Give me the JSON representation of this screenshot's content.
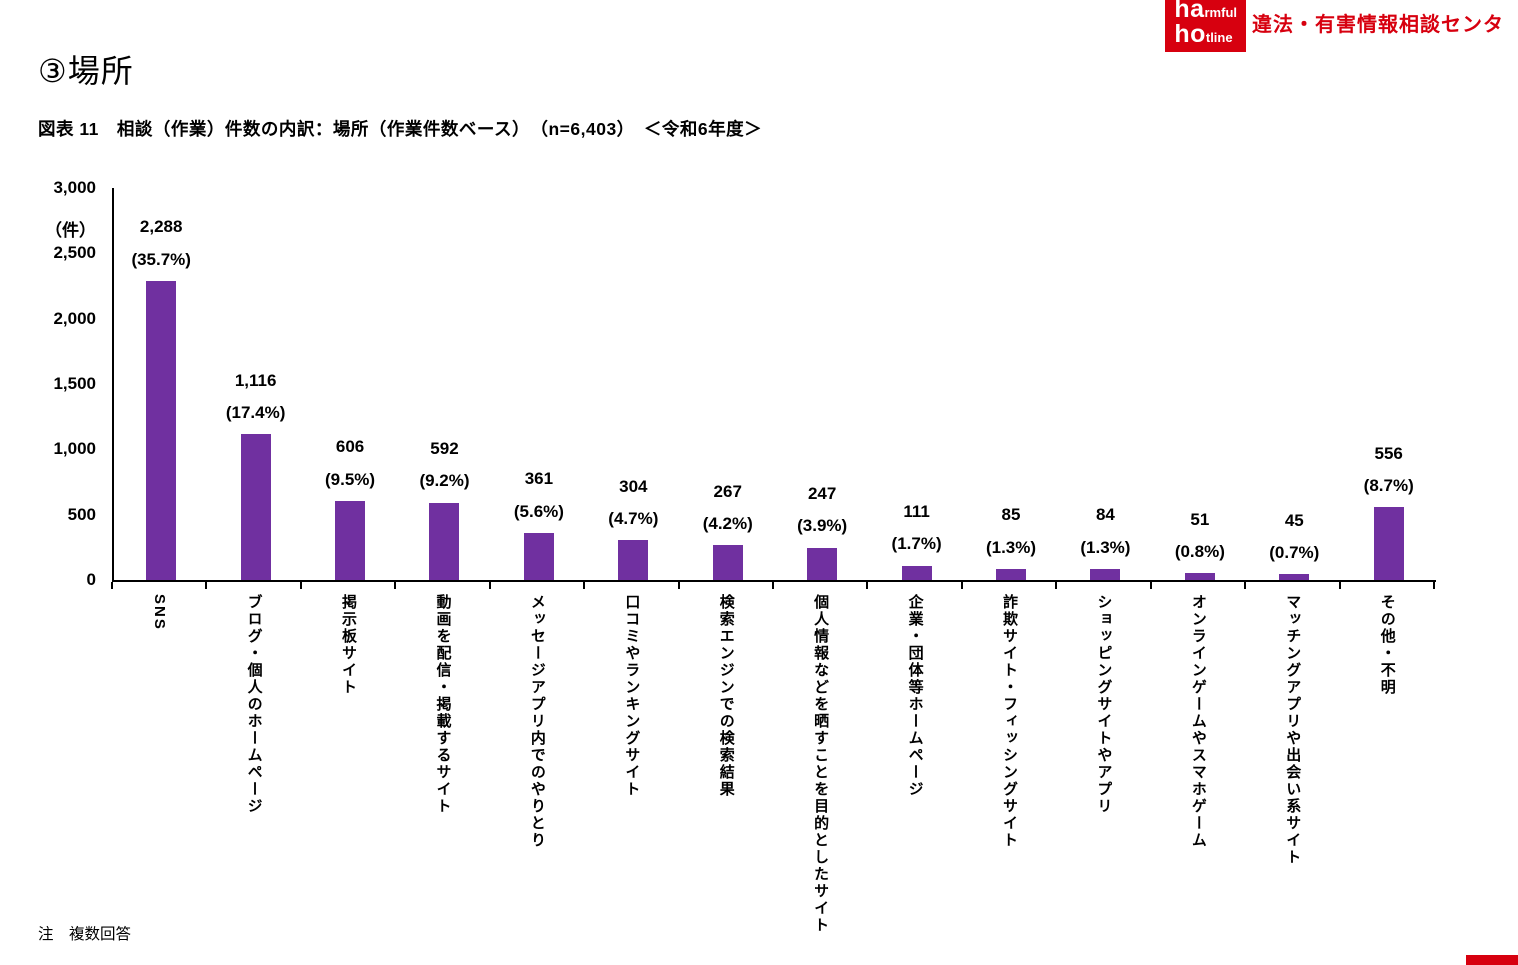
{
  "page": {
    "title": "③場所",
    "note": "注　複数回答"
  },
  "figure": {
    "caption": "図表 11　相談（作業）件数の内訳：場所（作業件数ベース）　（n=6,403）　＜令和6年度＞"
  },
  "logo": {
    "big1": "ha",
    "small1": "rmful",
    "big2": "ho",
    "small2": "tline",
    "tagline": "違法・有害情報相談センタ"
  },
  "chart_data": {
    "type": "bar",
    "title": "相談（作業）件数の内訳：場所（作業件数ベース）（n=6,403）＜令和6年度＞",
    "xlabel": "",
    "ylabel": "（件）",
    "ylim": [
      0,
      3000
    ],
    "yticks": [
      0,
      500,
      1000,
      1500,
      2000,
      2500,
      3000
    ],
    "ytick_labels": [
      "0",
      "500",
      "1,000",
      "1,500",
      "2,000",
      "2,500",
      "3,000"
    ],
    "grid": "off",
    "legend": "none",
    "bar_color": "#7030a0",
    "categories": [
      "SNS",
      "ブログ・個人のホームページ",
      "掲示板サイト",
      "動画を配信・掲載するサイト",
      "メッセージアプリ内でのやりとり",
      "口コミやランキングサイト",
      "検索エンジンでの検索結果",
      "個人情報などを晒すことを目的としたサイト",
      "企業・団体等ホームページ",
      "詐欺サイト・フィッシングサイト",
      "ショッピングサイトやアプリ",
      "オンラインゲームやスマホゲーム",
      "マッチングアプリや出会い系サイト",
      "その他・不明"
    ],
    "values": [
      2288,
      1116,
      606,
      592,
      361,
      304,
      267,
      247,
      111,
      85,
      84,
      51,
      45,
      556
    ],
    "value_labels": [
      "2,288",
      "1,116",
      "606",
      "592",
      "361",
      "304",
      "267",
      "247",
      "111",
      "85",
      "84",
      "51",
      "45",
      "556"
    ],
    "percent_labels": [
      "(35.7%)",
      "(17.4%)",
      "(9.5%)",
      "(9.2%)",
      "(5.6%)",
      "(4.7%)",
      "(4.2%)",
      "(3.9%)",
      "(1.7%)",
      "(1.3%)",
      "(1.3%)",
      "(0.8%)",
      "(0.7%)",
      "(8.7%)"
    ]
  }
}
